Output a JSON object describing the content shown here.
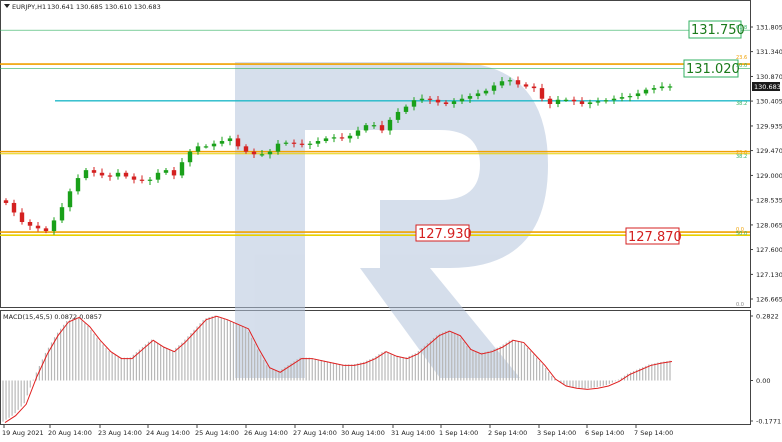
{
  "header": {
    "symbol_label": "EURJPY,H1",
    "ohlc": "130.641 130.685 130.610 130.683"
  },
  "macd_header": "MACD(15,45,5) 0.0872 0.0857",
  "price_axis": {
    "ticks": [
      "131.805",
      "131.340",
      "130.870",
      "130.405",
      "129.935",
      "129.470",
      "129.000",
      "128.535",
      "128.065",
      "127.600",
      "127.130",
      "126.665"
    ],
    "current_price": "130.683"
  },
  "macd_axis": {
    "ticks": [
      "0.2822",
      "0.00",
      "-0.1771"
    ]
  },
  "time_axis": {
    "labels": [
      "19 Aug 2021",
      "20 Aug 14:00",
      "23 Aug 14:00",
      "24 Aug 14:00",
      "25 Aug 14:00",
      "26 Aug 14:00",
      "27 Aug 14:00",
      "30 Aug 14:00",
      "31 Aug 14:00",
      "1 Sep 14:00",
      "2 Sep 14:00",
      "3 Sep 14:00",
      "6 Sep 14:00",
      "7 Sep 14:00"
    ]
  },
  "levels": {
    "green_box_1": "131.750",
    "green_box_2": "131.020",
    "red_box_1": "127.930",
    "red_box_2": "127.870",
    "fib_labels": [
      "61.8",
      "23.6",
      "50.0",
      "38.2",
      "23.6",
      "38.2",
      "0.0",
      "50.0",
      "0.0"
    ]
  },
  "colors": {
    "bull": "#1aa01a",
    "bear": "#d42020",
    "orange_level": "#f0a000",
    "yellow_level": "#e8d000",
    "cyan_level": "#20b8c8",
    "green_level": "#30b060",
    "signal_line": "#e02020",
    "histogram": "#b8b8b8",
    "watermark": "#b4c4dc"
  },
  "chart_data": {
    "type": "candlestick",
    "symbol": "EURJPY",
    "timeframe": "H1",
    "price_close_path": [
      128.48,
      128.3,
      128.12,
      128.05,
      128.0,
      127.95,
      128.15,
      128.4,
      128.7,
      128.95,
      129.1,
      129.05,
      129.0,
      128.98,
      129.05,
      128.98,
      128.92,
      128.9,
      128.92,
      129.05,
      129.1,
      129.0,
      129.25,
      129.45,
      129.55,
      129.55,
      129.6,
      129.65,
      129.7,
      129.55,
      129.45,
      129.4,
      129.4,
      129.45,
      129.6,
      129.62,
      129.6,
      129.58,
      129.6,
      129.65,
      129.7,
      129.72,
      129.7,
      129.75,
      129.85,
      129.95,
      129.95,
      129.85,
      130.05,
      130.2,
      130.3,
      130.42,
      130.45,
      130.43,
      130.38,
      130.35,
      130.4,
      130.45,
      130.5,
      130.55,
      130.6,
      130.7,
      130.78,
      130.8,
      130.72,
      130.68,
      130.65,
      130.45,
      130.35,
      130.43,
      130.43,
      130.4,
      130.35,
      130.38,
      130.4,
      130.42,
      130.45,
      130.48,
      130.5,
      130.55,
      130.62,
      130.65,
      130.68,
      130.683
    ],
    "macd_path": [
      -0.18,
      -0.15,
      -0.1,
      0.02,
      0.12,
      0.2,
      0.26,
      0.28,
      0.24,
      0.18,
      0.13,
      0.1,
      0.1,
      0.14,
      0.18,
      0.15,
      0.13,
      0.17,
      0.22,
      0.27,
      0.285,
      0.27,
      0.25,
      0.23,
      0.14,
      0.06,
      0.04,
      0.07,
      0.1,
      0.1,
      0.09,
      0.08,
      0.07,
      0.07,
      0.08,
      0.1,
      0.13,
      0.11,
      0.1,
      0.12,
      0.16,
      0.2,
      0.22,
      0.2,
      0.14,
      0.12,
      0.13,
      0.15,
      0.18,
      0.17,
      0.12,
      0.07,
      0.01,
      -0.02,
      -0.03,
      -0.035,
      -0.03,
      -0.02,
      0.0,
      0.03,
      0.05,
      0.07,
      0.08,
      0.087
    ],
    "ylim_price": [
      126.665,
      131.805
    ],
    "ylim_macd": [
      -0.1771,
      0.2822
    ]
  }
}
